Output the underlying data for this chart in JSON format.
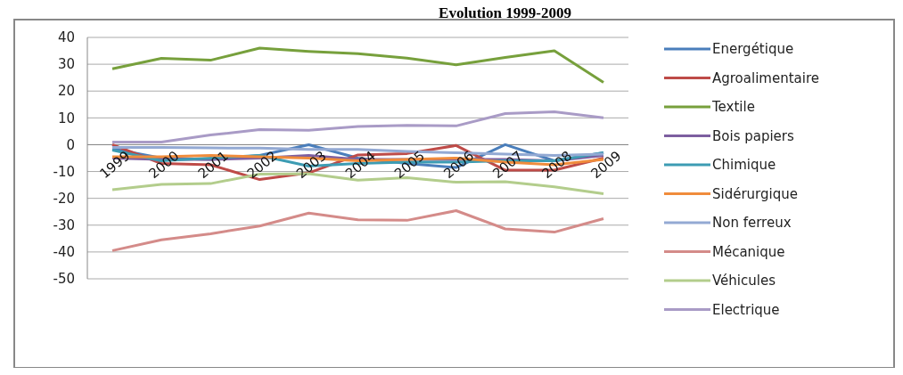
{
  "chart_data": {
    "type": "line",
    "title": "Evolution 1999-2009",
    "categories": [
      "1999",
      "2000",
      "2001",
      "2002",
      "2003",
      "2004",
      "2005",
      "2006",
      "2007",
      "2008",
      "2009"
    ],
    "ylim": [
      -50,
      40
    ],
    "yticks": [
      -50,
      -40,
      -30,
      -20,
      -10,
      0,
      10,
      20,
      30,
      40
    ],
    "grid": "y",
    "legend": "right",
    "marker": "none",
    "line_style": "solid",
    "series": [
      {
        "name": "Energétique",
        "color": "#4a7ebb",
        "values": [
          -1.5,
          -5,
          -5.5,
          -4,
          0,
          -5,
          -7,
          -8.5,
          0,
          -6,
          -3
        ]
      },
      {
        "name": "Agroalimentaire",
        "color": "#be4b48",
        "values": [
          0,
          -7,
          -7.5,
          -13,
          -10.5,
          -3.8,
          -3.3,
          -0.3,
          -9.5,
          -9.5,
          -5
        ]
      },
      {
        "name": "Textile",
        "color": "#77a03c",
        "values": [
          28.3,
          32.2,
          31.5,
          36,
          34.8,
          33.9,
          32.3,
          29.8,
          32.5,
          35,
          23.2
        ]
      },
      {
        "name": "Bois papiers",
        "color": "#7d5fa0",
        "values": [
          -5,
          -5.5,
          -5.5,
          -5,
          -4,
          -5.5,
          -5.5,
          -5.5,
          -5.5,
          -6,
          -4
        ]
      },
      {
        "name": "Chimique",
        "color": "#3d9cb3",
        "values": [
          -2,
          -6,
          -5,
          -4,
          -8,
          -7,
          -6.5,
          -6.5,
          -6,
          -6,
          -3
        ]
      },
      {
        "name": "Sidérurgique",
        "color": "#f08c3c",
        "values": [
          -4.5,
          -4.5,
          -4,
          -4.5,
          -5,
          -6,
          -5.5,
          -5,
          -6.5,
          -7.5,
          -5.5
        ]
      },
      {
        "name": "Non ferreux",
        "color": "#93a9d3",
        "values": [
          -1,
          -1,
          -1.2,
          -1.3,
          -1.8,
          -1.8,
          -2.5,
          -3,
          -3.5,
          -4,
          -3.5
        ]
      },
      {
        "name": "Mécanique",
        "color": "#d48b89",
        "values": [
          -39.5,
          -35.5,
          -33.2,
          -30.3,
          -25.5,
          -28,
          -28.2,
          -24.6,
          -31.4,
          -32.6,
          -27.6
        ]
      },
      {
        "name": "Véhicules",
        "color": "#b3cd8c",
        "values": [
          -16.8,
          -14.8,
          -14.5,
          -11,
          -10.8,
          -13.2,
          -12.3,
          -14,
          -13.8,
          -15.7,
          -18.3
        ]
      },
      {
        "name": "Electrique",
        "color": "#a99bc6",
        "values": [
          1,
          1,
          3.6,
          5.6,
          5.4,
          6.8,
          7.2,
          7,
          11.6,
          12.3,
          10
        ]
      }
    ]
  }
}
